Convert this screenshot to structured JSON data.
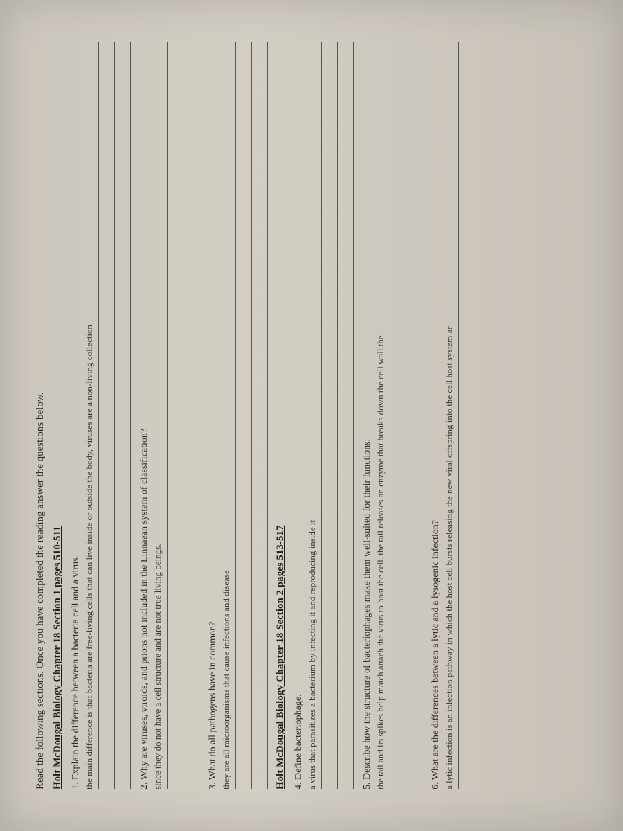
{
  "instruction": "Read the following sections. Once you have completed the reading answer the questions below.",
  "section1": {
    "header": "Holt McDougal Biology Chapter 18 Section 1 pages 510-511",
    "q1": {
      "prompt": "1.  Explain the difference between a bacteria cell and a virus.",
      "answer": "the main difference is that bacteria are free-living cells that can live inside or outside the body, viruses are a non-living collection"
    },
    "q2": {
      "prompt": "2.  Why are viruses, viroids, and prions not included in the Linnaean system of classification?",
      "answer": "since they do not have a cell structure and are not true living beings."
    },
    "q3": {
      "prompt": "3.  What do all pathogens have in common?",
      "answer": "they are all microorganisms that cause infections and disease."
    }
  },
  "section2": {
    "header": "Holt McDougal Biology Chapter 18 Section 2 pages 513-517",
    "q4": {
      "prompt": "4.  Define bacteriophage.",
      "answer": "a virus that parasitizes a bacterium by infecting it and reproducing inside it"
    },
    "q5": {
      "prompt": "5.  Describe how the structure of bacteriophages make them well-suited for their functions.",
      "answer": "the tail and its spikes help match attach the virus to host the cell. the tail releases an enzyme that breaks down the cell wall.the"
    },
    "q6": {
      "prompt": "6.  What are the differences between a lytic and a lysogenic infection?",
      "answer": "a lytic infection is an infection pathway in which the host cell bursts releasing the new viral offspring into the cell host system ar"
    }
  },
  "colors": {
    "page_bg": "#d4cec4",
    "text": "#2a2a2a",
    "line": "#555555"
  }
}
